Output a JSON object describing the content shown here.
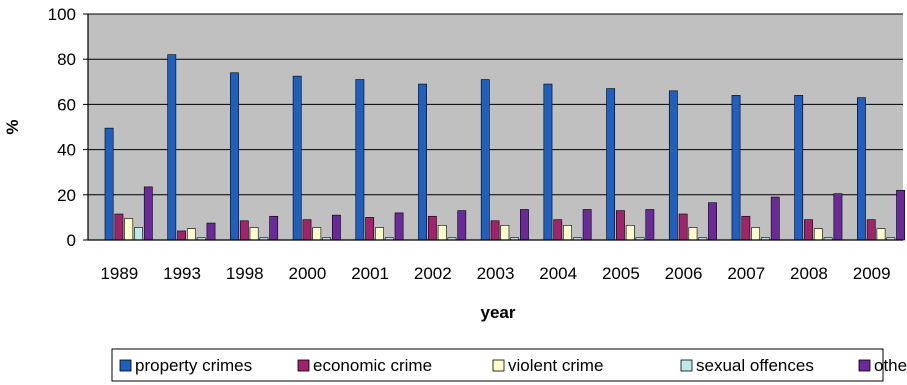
{
  "chart_data": {
    "type": "bar",
    "xlabel": "year",
    "ylabel": "%",
    "ylim": [
      0,
      100
    ],
    "yticks": [
      "0",
      "20",
      "40",
      "60",
      "80",
      "100"
    ],
    "grid": true,
    "legend_position": "bottom",
    "categories": [
      "1989",
      "1993",
      "1998",
      "2000",
      "2001",
      "2002",
      "2003",
      "2004",
      "2005",
      "2006",
      "2007",
      "2008",
      "2009"
    ],
    "series": [
      {
        "name": "property crimes",
        "color": "#1f5fbf",
        "values": [
          49.5,
          82,
          74,
          72.5,
          71,
          69,
          71,
          69,
          67,
          66,
          64,
          64,
          63
        ]
      },
      {
        "name": "economic crime",
        "color": "#a0246c",
        "values": [
          11.5,
          4,
          8.5,
          9,
          10,
          10.5,
          8.5,
          9,
          13,
          11.5,
          10.5,
          9,
          9
        ]
      },
      {
        "name": "violent crime",
        "color": "#ffffcc",
        "values": [
          9.5,
          5,
          5.5,
          5.5,
          5.5,
          6.5,
          6.5,
          6.5,
          6.5,
          5.5,
          5.5,
          5,
          5
        ]
      },
      {
        "name": "sexual offences",
        "color": "#bde8e8",
        "values": [
          5.5,
          1,
          1,
          1,
          1,
          1,
          1,
          1,
          1,
          1,
          1,
          1,
          1
        ]
      },
      {
        "name": "others",
        "color": "#6a2a9a",
        "values": [
          23.5,
          7.5,
          10.5,
          11,
          12,
          13,
          13.5,
          13.5,
          13.5,
          16.5,
          19,
          20.5,
          22
        ]
      }
    ]
  }
}
